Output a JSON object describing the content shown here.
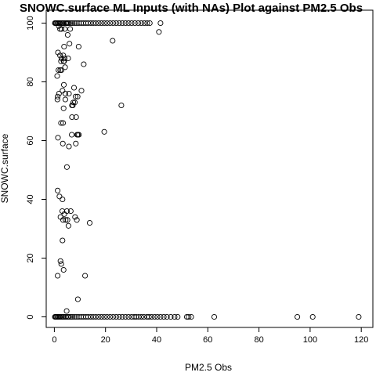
{
  "chart_data": {
    "type": "scatter",
    "title": "SNOWC.surface ML Inputs (with NAs) Plot against PM2.5 Obs",
    "xlabel": "PM2.5 Obs",
    "ylabel": "SNOWC.surface",
    "xlim": [
      0,
      120
    ],
    "ylim": [
      0,
      100
    ],
    "x_ticks": [
      0,
      20,
      40,
      60,
      80,
      100,
      120
    ],
    "y_ticks": [
      0,
      20,
      40,
      60,
      80,
      100
    ],
    "grid": false,
    "legend": "none",
    "marker": "open-circle",
    "series": [
      {
        "points": [
          [
            0.2,
            100
          ],
          [
            0.5,
            100
          ],
          [
            0.8,
            100
          ],
          [
            1.2,
            100
          ],
          [
            1.6,
            100
          ],
          [
            2.0,
            100
          ],
          [
            2.5,
            100
          ],
          [
            3.0,
            100
          ],
          [
            3.5,
            100
          ],
          [
            4.0,
            100
          ],
          [
            4.6,
            100
          ],
          [
            5.2,
            100
          ],
          [
            5.8,
            100
          ],
          [
            6.5,
            100
          ],
          [
            7.2,
            100
          ],
          [
            8.0,
            100
          ],
          [
            8.8,
            100
          ],
          [
            9.6,
            100
          ],
          [
            10.5,
            100
          ],
          [
            11.4,
            100
          ],
          [
            12.3,
            100
          ],
          [
            13.2,
            100
          ],
          [
            14.2,
            100
          ],
          [
            15.2,
            100
          ],
          [
            16.2,
            100
          ],
          [
            17.3,
            100
          ],
          [
            18.4,
            100
          ],
          [
            19.5,
            100
          ],
          [
            20.6,
            100
          ],
          [
            21.8,
            100
          ],
          [
            23.0,
            100
          ],
          [
            24.2,
            100
          ],
          [
            25.4,
            100
          ],
          [
            26.6,
            100
          ],
          [
            27.8,
            100
          ],
          [
            29.0,
            100
          ],
          [
            30.2,
            100
          ],
          [
            31.5,
            100
          ],
          [
            32.8,
            100
          ],
          [
            34.0,
            100
          ],
          [
            35.2,
            100
          ],
          [
            36.3,
            100
          ],
          [
            37.3,
            100
          ],
          [
            41.5,
            100
          ],
          [
            0.2,
            0
          ],
          [
            0.5,
            0
          ],
          [
            0.8,
            0
          ],
          [
            1.2,
            0
          ],
          [
            1.6,
            0
          ],
          [
            2.0,
            0
          ],
          [
            2.5,
            0
          ],
          [
            3.0,
            0
          ],
          [
            3.5,
            0
          ],
          [
            4.0,
            0
          ],
          [
            4.6,
            0
          ],
          [
            5.2,
            0
          ],
          [
            5.8,
            0
          ],
          [
            6.5,
            0
          ],
          [
            7.2,
            0
          ],
          [
            8.0,
            0
          ],
          [
            8.8,
            0
          ],
          [
            9.6,
            0
          ],
          [
            10.5,
            0
          ],
          [
            11.4,
            0
          ],
          [
            12.3,
            0
          ],
          [
            13.2,
            0
          ],
          [
            14.2,
            0
          ],
          [
            15.2,
            0
          ],
          [
            16.2,
            0
          ],
          [
            17.3,
            0
          ],
          [
            18.4,
            0
          ],
          [
            19.5,
            0
          ],
          [
            20.6,
            0
          ],
          [
            21.8,
            0
          ],
          [
            23.0,
            0
          ],
          [
            24.2,
            0
          ],
          [
            25.4,
            0
          ],
          [
            26.6,
            0
          ],
          [
            27.8,
            0
          ],
          [
            29.0,
            0
          ],
          [
            30.2,
            0
          ],
          [
            31.2,
            0
          ],
          [
            32.0,
            0
          ],
          [
            33.0,
            0
          ],
          [
            34.0,
            0
          ],
          [
            35.0,
            0
          ],
          [
            36.2,
            0
          ],
          [
            37.0,
            0
          ],
          [
            38.0,
            0
          ],
          [
            39.2,
            0
          ],
          [
            40.3,
            0
          ],
          [
            41.5,
            0
          ],
          [
            42.8,
            0
          ],
          [
            44.0,
            0
          ],
          [
            45.5,
            0
          ],
          [
            47.0,
            0
          ],
          [
            48.2,
            0
          ],
          [
            51.8,
            0
          ],
          [
            52.5,
            0
          ],
          [
            53.5,
            0
          ],
          [
            62.5,
            0
          ],
          [
            95.0,
            0
          ],
          [
            101.0,
            0
          ],
          [
            119.0,
            0
          ],
          [
            4.8,
            2
          ],
          [
            9.2,
            6
          ],
          [
            12.0,
            14
          ],
          [
            1.3,
            14
          ],
          [
            3.6,
            16
          ],
          [
            2.7,
            18
          ],
          [
            2.4,
            19
          ],
          [
            3.2,
            26
          ],
          [
            5.5,
            31
          ],
          [
            4.4,
            33
          ],
          [
            5.1,
            33
          ],
          [
            8.8,
            33
          ],
          [
            2.4,
            34
          ],
          [
            3.4,
            33
          ],
          [
            3.9,
            35
          ],
          [
            13.8,
            32
          ],
          [
            3.1,
            36
          ],
          [
            4.9,
            36
          ],
          [
            6.4,
            36
          ],
          [
            8.1,
            34
          ],
          [
            3.2,
            40
          ],
          [
            2.0,
            41
          ],
          [
            1.3,
            43
          ],
          [
            4.9,
            51
          ],
          [
            5.7,
            58
          ],
          [
            3.3,
            59
          ],
          [
            8.4,
            59
          ],
          [
            8.9,
            62
          ],
          [
            9.2,
            62
          ],
          [
            9.6,
            62
          ],
          [
            6.8,
            62
          ],
          [
            1.4,
            61
          ],
          [
            19.5,
            63
          ],
          [
            2.6,
            66
          ],
          [
            3.4,
            66
          ],
          [
            8.5,
            68
          ],
          [
            6.9,
            68
          ],
          [
            3.6,
            71
          ],
          [
            4.3,
            74
          ],
          [
            7.4,
            73
          ],
          [
            8.0,
            73
          ],
          [
            7.2,
            72
          ],
          [
            6.9,
            72
          ],
          [
            26.2,
            72
          ],
          [
            1.2,
            74
          ],
          [
            1.3,
            75
          ],
          [
            1.8,
            76
          ],
          [
            5.7,
            76
          ],
          [
            3.2,
            77
          ],
          [
            4.3,
            76
          ],
          [
            8.3,
            75
          ],
          [
            9.1,
            75
          ],
          [
            10.6,
            77
          ],
          [
            7.7,
            78
          ],
          [
            3.7,
            79
          ],
          [
            4.2,
            85
          ],
          [
            1.1,
            82
          ],
          [
            1.6,
            84
          ],
          [
            2.3,
            84
          ],
          [
            2.8,
            84
          ],
          [
            2.6,
            87
          ],
          [
            3.6,
            87
          ],
          [
            4.0,
            88
          ],
          [
            2.8,
            88
          ],
          [
            3.8,
            87
          ],
          [
            5.4,
            88
          ],
          [
            11.5,
            86
          ],
          [
            1.4,
            90
          ],
          [
            2.2,
            89
          ],
          [
            3.5,
            89
          ],
          [
            3.8,
            92
          ],
          [
            9.5,
            92
          ],
          [
            5.9,
            93
          ],
          [
            5.2,
            96
          ],
          [
            6.2,
            98
          ],
          [
            4.1,
            98
          ],
          [
            1.7,
            99
          ],
          [
            2.8,
            98
          ],
          [
            5.0,
            100
          ],
          [
            22.8,
            94
          ],
          [
            40.9,
            97
          ],
          [
            2.2,
            98
          ]
        ]
      }
    ]
  }
}
